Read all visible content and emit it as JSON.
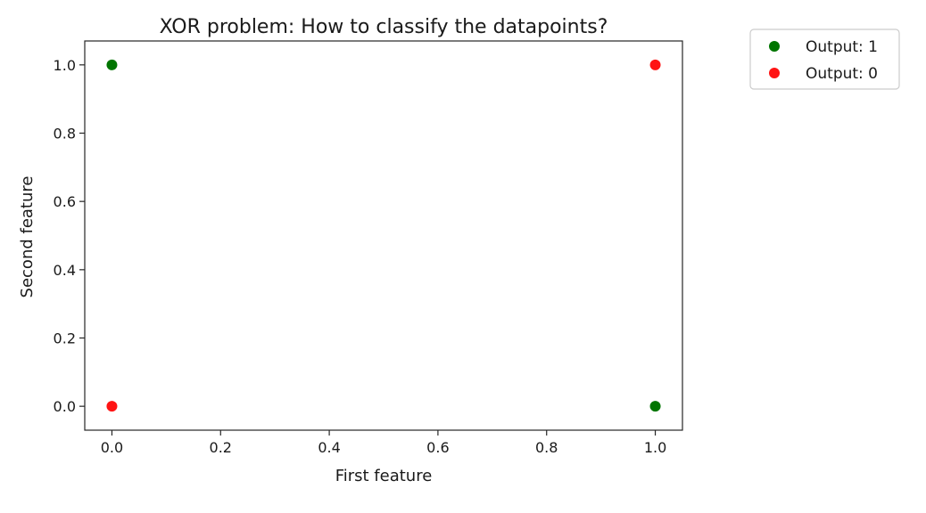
{
  "chart_data": {
    "type": "scatter",
    "title": "XOR problem: How to classify the datapoints?",
    "xlabel": "First feature",
    "ylabel": "Second feature",
    "xlim": [
      -0.05,
      1.05
    ],
    "ylim": [
      -0.07,
      1.07
    ],
    "xticks": [
      0.0,
      0.2,
      0.4,
      0.6,
      0.8,
      1.0
    ],
    "yticks": [
      0.0,
      0.2,
      0.4,
      0.6,
      0.8,
      1.0
    ],
    "xtick_labels": [
      "0.0",
      "0.2",
      "0.4",
      "0.6",
      "0.8",
      "1.0"
    ],
    "ytick_labels": [
      "0.0",
      "0.2",
      "0.4",
      "0.6",
      "0.8",
      "1.0"
    ],
    "grid": false,
    "legend_position": "outside-top-right",
    "series": [
      {
        "name": "Output: 1",
        "color": "#007500",
        "points": [
          [
            0,
            1
          ],
          [
            1,
            0
          ]
        ]
      },
      {
        "name": "Output: 0",
        "color": "#ff1414",
        "points": [
          [
            1,
            1
          ],
          [
            0,
            0
          ]
        ]
      }
    ]
  }
}
